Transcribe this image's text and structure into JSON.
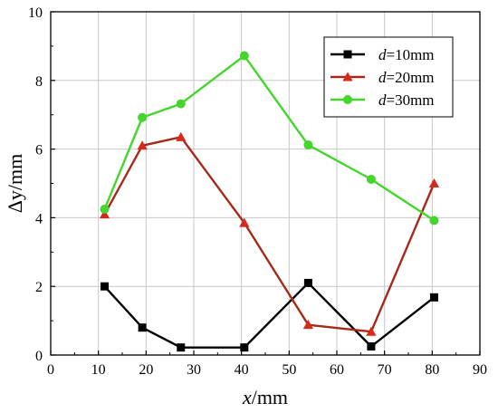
{
  "chart_data": {
    "type": "line",
    "xlabel_prefix": "x",
    "xlabel_unit": "/mm",
    "ylabel_prefix": "Δy",
    "ylabel_unit": "/mm",
    "xlim": [
      0,
      90
    ],
    "ylim": [
      0,
      10
    ],
    "x_ticks": [
      0,
      10,
      20,
      30,
      40,
      50,
      60,
      70,
      80,
      90
    ],
    "y_ticks": [
      0,
      2,
      4,
      6,
      8,
      10
    ],
    "grid": true,
    "legend_position": "top-right",
    "x": [
      11.3,
      19.2,
      27.3,
      40.6,
      54.0,
      67.2,
      80.4
    ],
    "series": [
      {
        "name_prefix": "d",
        "name_suffix": "=10mm",
        "color": "#000000",
        "marker": "square",
        "values": [
          2.0,
          0.8,
          0.22,
          0.22,
          2.1,
          0.25,
          1.68
        ]
      },
      {
        "name_prefix": "d",
        "name_suffix": "=20mm",
        "color": "#a52a1a",
        "line_color": "#a52a1a",
        "marker_color": "#d32a1a",
        "marker": "triangle",
        "values": [
          4.1,
          6.1,
          6.35,
          3.85,
          0.88,
          0.68,
          5.0
        ]
      },
      {
        "name_prefix": "d",
        "name_suffix": "=30mm",
        "color": "#44d62c",
        "marker": "circle",
        "values": [
          4.25,
          6.92,
          7.32,
          8.72,
          6.12,
          5.12,
          3.92
        ]
      }
    ]
  }
}
